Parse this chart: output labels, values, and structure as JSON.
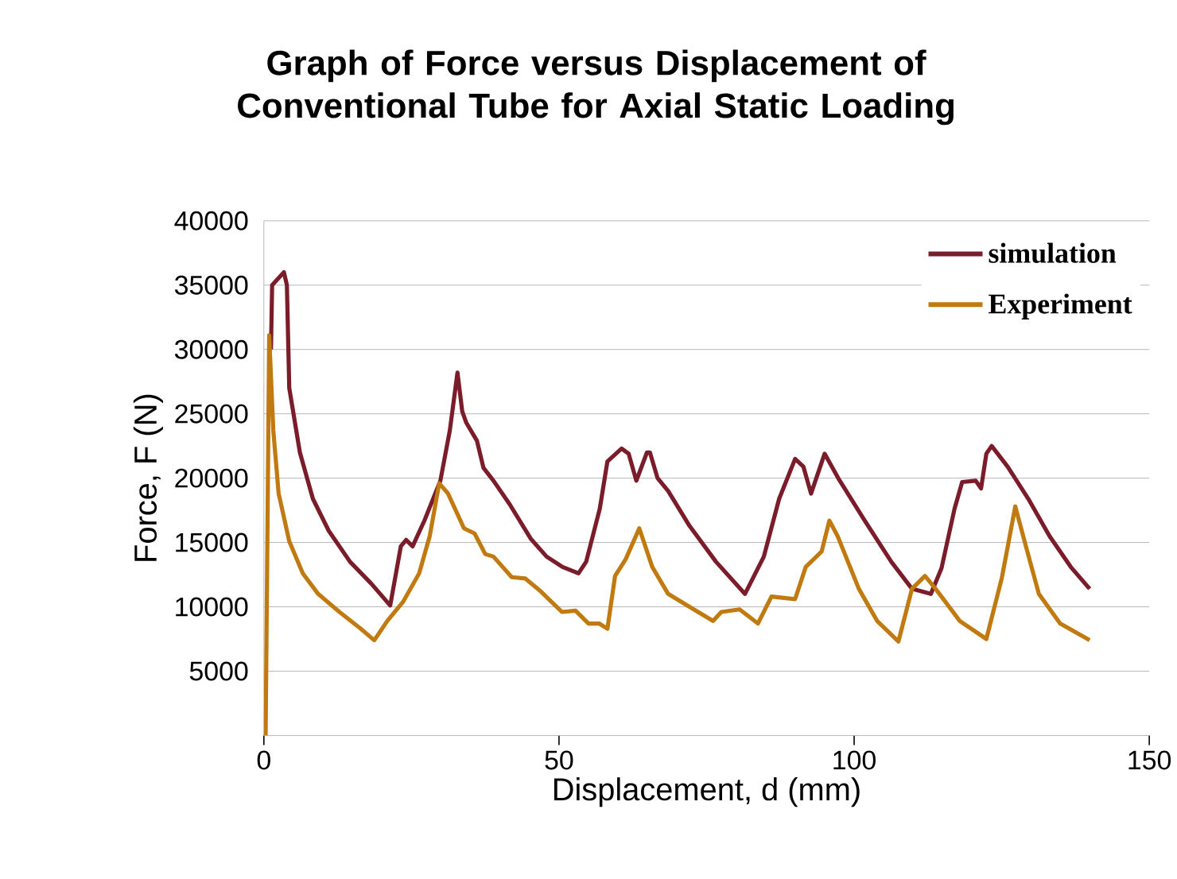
{
  "chart_data": {
    "type": "line",
    "title": "Graph of Force versus Displacement of Conventional Tube for Axial Static Loading",
    "xlabel": "Displacement, d (mm)",
    "ylabel": "Force, F (N)",
    "xlim": [
      0,
      150
    ],
    "ylim": [
      0,
      40000
    ],
    "xticks": [
      0,
      50,
      100,
      150
    ],
    "yticks": [
      5000,
      10000,
      15000,
      20000,
      25000,
      30000,
      35000,
      40000
    ],
    "grid": "y",
    "legend": "top right",
    "marker": "none",
    "line_style": "solid",
    "series": [
      {
        "name": "simulation",
        "color": "#7b1c2a",
        "x": [
          1.2,
          1.4,
          3.4,
          3.9,
          4.3,
          6.1,
          8.3,
          11.0,
          14.6,
          18.2,
          21.4,
          23.2,
          24.1,
          25.2,
          27.2,
          29.9,
          31.5,
          32.8,
          33.6,
          34.3,
          36.1,
          37.2,
          38.9,
          41.6,
          45.2,
          47.9,
          50.6,
          53.3,
          54.6,
          56.9,
          58.2,
          60.6,
          61.8,
          63.1,
          64.9,
          65.4,
          66.7,
          68.5,
          72.1,
          76.6,
          81.5,
          84.7,
          87.3,
          90.0,
          91.4,
          92.7,
          95.0,
          97.3,
          101.8,
          106.3,
          109.8,
          113.0,
          114.8,
          117.0,
          118.3,
          120.6,
          121.5,
          122.4,
          123.3,
          126.0,
          129.5,
          133.1,
          136.7,
          139.9
        ],
        "values": [
          30000,
          35000,
          36000,
          35000,
          27000,
          22000,
          18400,
          15900,
          13500,
          11800,
          10100,
          14700,
          15200,
          14700,
          16700,
          19800,
          23700,
          28200,
          25200,
          24300,
          22900,
          20800,
          19800,
          18000,
          15300,
          13900,
          13100,
          12600,
          13500,
          17600,
          21300,
          22300,
          21900,
          19800,
          22000,
          22000,
          20000,
          19000,
          16300,
          13500,
          11000,
          13900,
          18400,
          21500,
          20900,
          18800,
          21900,
          20000,
          16700,
          13500,
          11400,
          11000,
          13000,
          17600,
          19700,
          19800,
          19200,
          21900,
          22500,
          20900,
          18400,
          15500,
          13100,
          11400
        ]
      },
      {
        "name": "Experiment",
        "color": "#c07a10",
        "x": [
          0.3,
          0.9,
          1.6,
          2.5,
          4.3,
          6.6,
          9.2,
          12.8,
          16.4,
          18.7,
          20.9,
          23.6,
          26.3,
          28.1,
          29.7,
          31.2,
          33.9,
          35.7,
          37.5,
          38.9,
          42.0,
          44.3,
          46.9,
          50.5,
          52.8,
          55.0,
          56.8,
          58.2,
          59.5,
          61.3,
          63.6,
          65.8,
          68.5,
          72.1,
          76.1,
          77.5,
          80.6,
          83.7,
          86.0,
          90.0,
          91.8,
          94.5,
          95.8,
          97.2,
          100.8,
          103.9,
          107.5,
          109.8,
          112.0,
          113.8,
          117.9,
          122.4,
          125.0,
          127.3,
          129.1,
          131.3,
          134.9,
          139.9
        ],
        "values": [
          0,
          31100,
          23700,
          18800,
          15100,
          12600,
          11000,
          9600,
          8300,
          7400,
          8900,
          10400,
          12600,
          15500,
          19600,
          18800,
          16100,
          15700,
          14100,
          13900,
          12300,
          12200,
          11200,
          9600,
          9700,
          8700,
          8700,
          8300,
          12400,
          13700,
          16100,
          13100,
          11000,
          10000,
          8900,
          9600,
          9800,
          8700,
          10800,
          10600,
          13100,
          14300,
          16700,
          15500,
          11400,
          8900,
          7300,
          11400,
          12400,
          11400,
          8900,
          7500,
          12200,
          17800,
          14700,
          11000,
          8700,
          7400
        ]
      }
    ]
  }
}
